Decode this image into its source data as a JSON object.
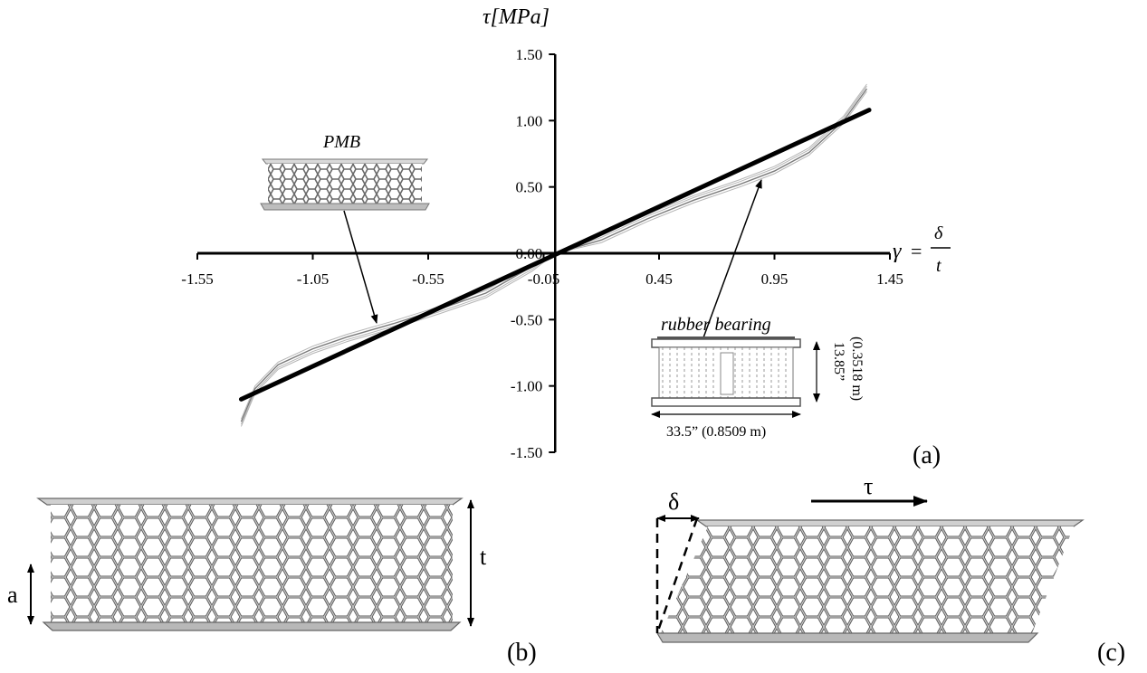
{
  "chart_data": {
    "type": "line",
    "title": "",
    "xlabel": "γ = δ/t",
    "xlabel_symbol": "γ",
    "xlabel_equals": "=",
    "xlabel_num": "δ",
    "xlabel_den": "t",
    "ylabel": "τ[MPa]",
    "xlim": [
      -1.55,
      1.45
    ],
    "ylim": [
      -1.5,
      1.5
    ],
    "xticks": [
      "-1.55",
      "-1.05",
      "-0.55",
      "-0.05",
      "0.45",
      "0.95",
      "1.45"
    ],
    "xtick_values": [
      -1.55,
      -1.05,
      -0.55,
      -0.05,
      0.45,
      0.95,
      1.45
    ],
    "yticks": [
      "1.50",
      "1.00",
      "0.50",
      "0.00",
      "-0.50",
      "-1.00",
      "-1.50"
    ],
    "ytick_values": [
      1.5,
      1.0,
      0.5,
      0.0,
      -0.5,
      -1.0,
      -1.5
    ],
    "grid": false,
    "legend": "none",
    "series": [
      {
        "name": "PMB",
        "style": "thick-black",
        "x": [
          -1.36,
          1.36
        ],
        "y": [
          -1.1,
          1.08
        ]
      },
      {
        "name": "rubber bearing",
        "style": "thin-grey-hysteresis",
        "x": [
          -1.36,
          -1.3,
          -1.2,
          -1.05,
          -0.9,
          -0.7,
          -0.5,
          -0.3,
          -0.1,
          0.0,
          0.2,
          0.4,
          0.6,
          0.8,
          0.95,
          1.1,
          1.25,
          1.35
        ],
        "y": [
          -1.27,
          -1.02,
          -0.84,
          -0.72,
          -0.63,
          -0.53,
          -0.42,
          -0.3,
          -0.1,
          0.0,
          0.1,
          0.26,
          0.4,
          0.52,
          0.62,
          0.76,
          1.0,
          1.24
        ]
      }
    ],
    "annotations": {
      "pmb_label": "PMB",
      "rubber_label": "rubber bearing",
      "rubber_height": "13.85”",
      "rubber_height_m": "(0.3518 m)",
      "rubber_width": "33.5” (0.8509 m)"
    }
  },
  "panels": {
    "a": "(a)",
    "b": "(b)",
    "c": "(c)",
    "b_a": "a",
    "b_t": "t",
    "c_delta": "δ",
    "c_tau": "τ"
  }
}
